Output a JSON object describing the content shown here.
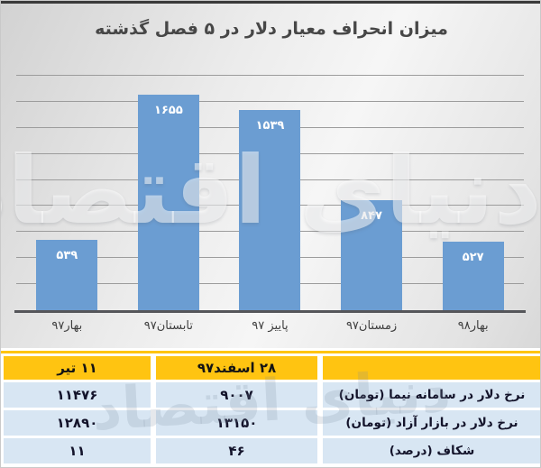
{
  "watermark": {
    "text": "دنیای اقتصاد"
  },
  "colors": {
    "bar": "#6B9DD2",
    "bar_label": "#FFFFFF",
    "table_header_bg": "#FFC411",
    "table_row_bg": "#D8E6F3",
    "baseline": "#55565A",
    "gridline": "#9C9C9C",
    "title_text": "#474747"
  },
  "chart_data": [
    {
      "type": "bar",
      "title": "میزان انحراف معیار دلار در ۵ فصل گذشته",
      "categories": [
        "بهار۹۷",
        "تابستان۹۷",
        "پاییز ۹۷",
        "زمستان۹۷",
        "بهار۹۸"
      ],
      "values": [
        539,
        1655,
        1539,
        847,
        527
      ],
      "value_labels": [
        "۵۳۹",
        "۱۶۵۵",
        "۱۵۳۹",
        "۸۴۷",
        "۵۲۷"
      ],
      "xlabel": "",
      "ylabel": "",
      "ylim": [
        0,
        1800
      ],
      "grid_step": 200,
      "grid": "horizontal",
      "y_tick_labels": "none",
      "legend": "none",
      "bar_color": "#6B9DD2"
    },
    {
      "type": "table",
      "columns": [
        "",
        "۲۸ اسفند۹۷",
        "۱۱ تیر"
      ],
      "rows": [
        [
          "نرخ دلار در سامانه نیما (تومان)",
          "۹۰۰۷",
          "۱۱۴۷۶"
        ],
        [
          "نرخ دلار در بازار آزاد (تومان)",
          "۱۳۱۵۰",
          "۱۲۸۹۰"
        ],
        [
          "شکاف (درصد)",
          "۴۶",
          "۱۱"
        ]
      ],
      "rows_numeric": [
        [
          "Nima system dollar rate (toman)",
          9007,
          11476
        ],
        [
          "Free market dollar rate (toman)",
          13150,
          12890
        ],
        [
          "Gap (percent)",
          46,
          11
        ]
      ]
    }
  ]
}
